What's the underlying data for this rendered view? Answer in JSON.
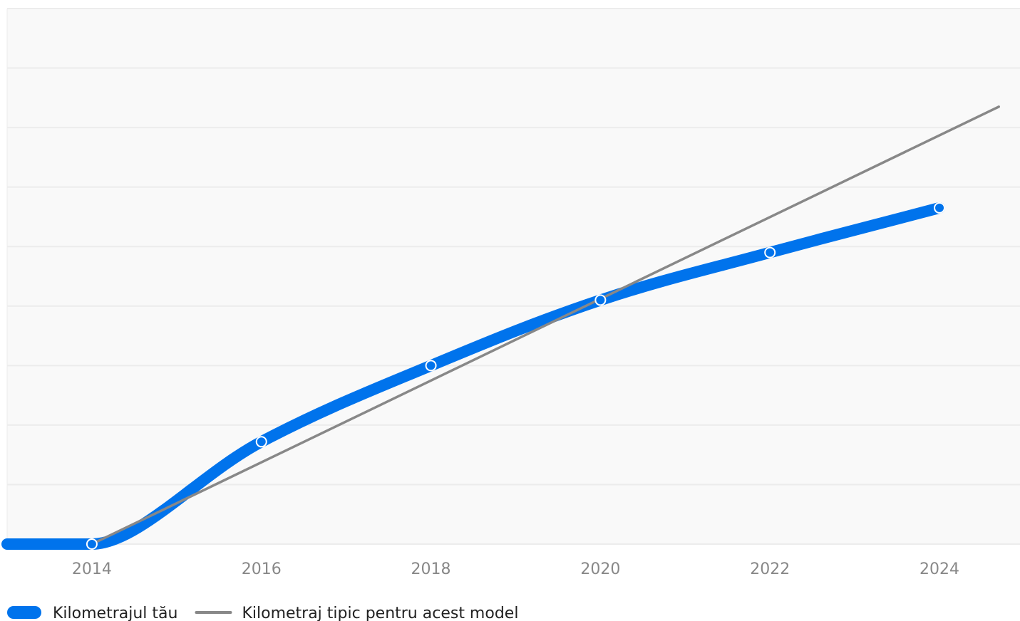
{
  "chart_data": {
    "type": "line",
    "title": "",
    "xlabel": "",
    "ylabel": "",
    "xlim": [
      2013.0,
      2024.95
    ],
    "ylim": [
      0,
      9
    ],
    "x_ticks": [
      "2014",
      "2016",
      "2018",
      "2020",
      "2022",
      "2024"
    ],
    "x_tick_values": [
      2014,
      2016,
      2018,
      2020,
      2022,
      2024
    ],
    "y_gridlines": [
      0,
      1,
      2,
      3,
      4,
      5,
      6,
      7,
      8,
      9
    ],
    "grid": true,
    "legend_position": "bottom-left",
    "series": [
      {
        "name": "Kilometrajul tău",
        "style": "thick",
        "color": "#0073ec",
        "x": [
          2013.0,
          2014,
          2016,
          2018,
          2020,
          2022,
          2024
        ],
        "y": [
          0,
          0,
          1.72,
          3.0,
          4.1,
          4.9,
          5.65
        ],
        "markers": [
          2014,
          2016,
          2018,
          2020,
          2022,
          2024
        ]
      },
      {
        "name": "Kilometraj tipic pentru acest model",
        "style": "thin",
        "color": "#888888",
        "x": [
          2014,
          2024.7
        ],
        "y": [
          0,
          7.35
        ]
      }
    ]
  },
  "colors": {
    "background": "#f9f9f9",
    "grid": "#ececec",
    "primary": "#0073ec",
    "typical": "#888888"
  }
}
